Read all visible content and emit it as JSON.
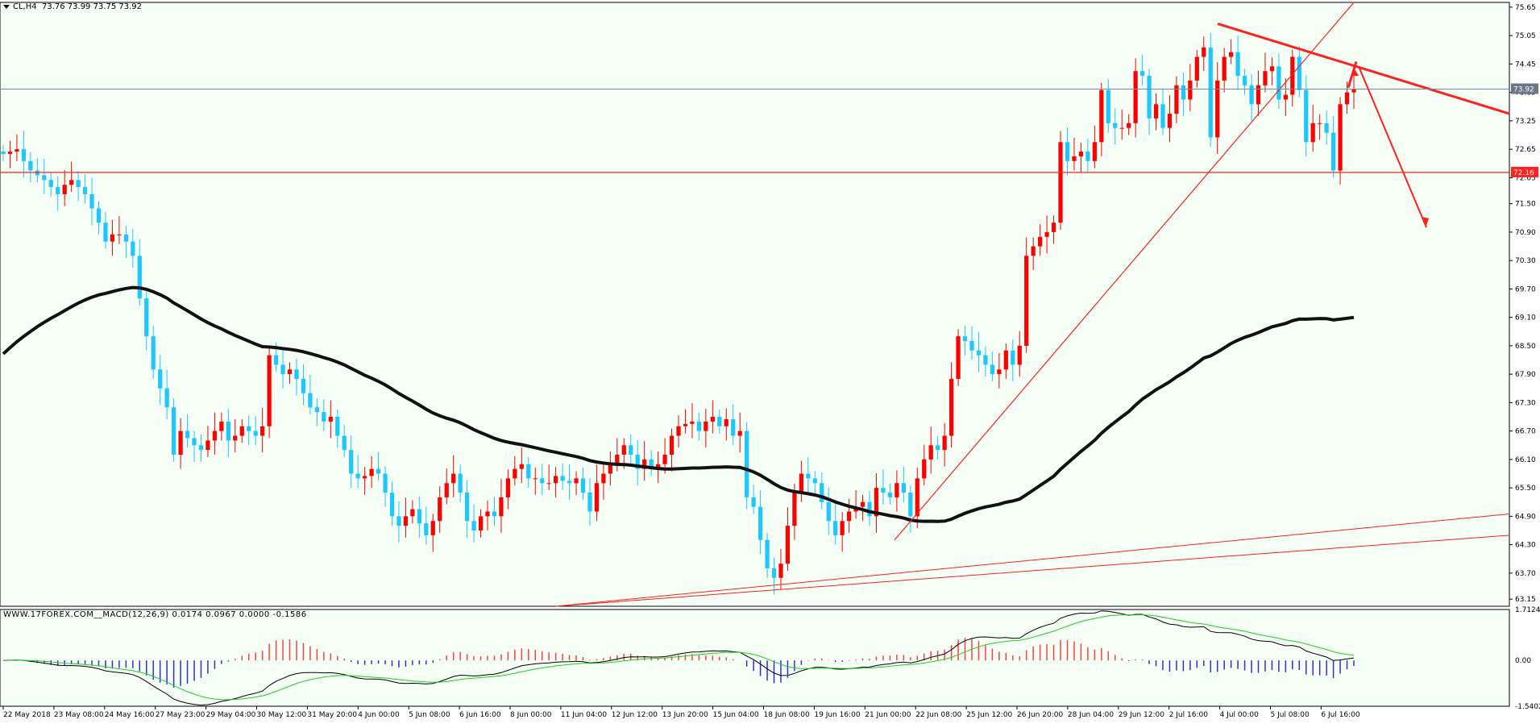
{
  "header": {
    "symbol": "CL,H4",
    "ohlc": "73.76 73.99 73.75 73.92"
  },
  "macd_header": {
    "watermark": "WWW.17FOREX.COM",
    "label": "MACD(12,26,9) 0.0174 0.0967 0.0000 -0.1586"
  },
  "colors": {
    "background": "#f5fff5",
    "bull": "#ff0000",
    "bear": "#1ec8ff",
    "ma": "#111111",
    "trend": "#ff2020",
    "macd_hist_pos": "#ff4040",
    "macd_hist_neg": "#3030d0",
    "macd_signal": "#22cc22",
    "macd_line": "#000000"
  },
  "chart_data": {
    "type": "candlestick",
    "price_axis": {
      "min": 63.0,
      "max": 75.75,
      "ticks": [
        "75.65",
        "75.05",
        "74.45",
        "73.85",
        "73.25",
        "72.65",
        "72.05",
        "71.50",
        "70.90",
        "70.30",
        "69.70",
        "69.10",
        "68.50",
        "67.90",
        "67.30",
        "66.70",
        "66.10",
        "65.50",
        "64.90",
        "64.30",
        "63.70",
        "63.15"
      ]
    },
    "current_price": "73.92",
    "support_level": "72.16",
    "x_labels": [
      "22 May 2018",
      "23 May 08:00",
      "24 May 16:00",
      "27 May 23:00",
      "29 May 04:00",
      "30 May 12:00",
      "31 May 20:00",
      "4 Jun 00:00",
      "5 Jun 08:00",
      "6 Jun 16:00",
      "8 Jun 00:00",
      "11 Jun 04:00",
      "12 Jun 12:00",
      "13 Jun 20:00",
      "15 Jun 04:00",
      "18 Jun 08:00",
      "19 Jun 16:00",
      "21 Jun 00:00",
      "22 Jun 08:00",
      "25 Jun 12:00",
      "26 Jun 20:00",
      "28 Jun 04:00",
      "29 Jun 12:00",
      "2 Jul 16:00",
      "4 Jul 00:00",
      "5 Jul 08:00",
      "6 Jul 16:00"
    ],
    "closes": [
      72.55,
      72.6,
      72.65,
      72.4,
      72.2,
      72.1,
      72.0,
      71.85,
      71.7,
      71.9,
      72.0,
      71.85,
      71.7,
      71.4,
      71.1,
      70.7,
      70.85,
      70.85,
      70.7,
      70.4,
      69.5,
      68.7,
      68.0,
      67.6,
      67.2,
      66.2,
      66.7,
      66.55,
      66.4,
      66.3,
      66.5,
      66.7,
      66.9,
      66.5,
      66.6,
      66.8,
      66.7,
      66.6,
      66.8,
      68.3,
      68.1,
      67.9,
      68.0,
      67.8,
      67.5,
      67.2,
      67.1,
      66.9,
      67.0,
      66.6,
      66.3,
      65.8,
      65.7,
      65.75,
      65.9,
      65.8,
      65.4,
      64.9,
      64.7,
      64.9,
      65.05,
      64.75,
      64.5,
      64.8,
      65.3,
      65.6,
      65.8,
      65.4,
      64.8,
      64.6,
      64.9,
      65.0,
      64.9,
      65.3,
      65.7,
      65.9,
      66.0,
      65.7,
      65.7,
      65.6,
      65.6,
      65.75,
      65.65,
      65.6,
      65.7,
      65.4,
      65.0,
      65.6,
      65.8,
      66.0,
      66.2,
      66.4,
      66.2,
      65.9,
      66.1,
      65.9,
      66.0,
      66.2,
      66.6,
      66.8,
      66.85,
      66.9,
      66.7,
      66.9,
      67.0,
      66.8,
      66.95,
      66.6,
      66.7,
      65.3,
      65.1,
      64.4,
      63.8,
      63.6,
      63.9,
      64.7,
      65.4,
      65.8,
      65.7,
      65.6,
      65.2,
      64.8,
      64.5,
      64.8,
      65.0,
      65.1,
      65.2,
      64.9,
      65.5,
      65.4,
      65.3,
      65.6,
      65.4,
      64.9,
      65.7,
      66.1,
      66.4,
      66.3,
      66.6,
      67.8,
      68.7,
      68.6,
      68.4,
      68.3,
      68.1,
      67.9,
      68.0,
      68.4,
      68.1,
      68.5,
      70.4,
      70.6,
      70.8,
      70.9,
      71.1,
      72.8,
      72.4,
      72.5,
      72.6,
      72.4,
      72.8,
      73.9,
      73.2,
      73.1,
      73.1,
      73.2,
      74.3,
      74.2,
      73.3,
      73.6,
      73.1,
      73.4,
      74.0,
      73.7,
      74.1,
      74.6,
      74.8,
      72.9,
      74.1,
      74.6,
      74.7,
      74.2,
      74.0,
      73.6,
      74.0,
      74.3,
      74.4,
      73.7,
      73.8,
      74.6,
      73.9,
      72.8,
      73.2,
      73.2,
      73.0,
      72.2,
      73.6,
      73.85,
      73.92
    ],
    "ma_last": 69.1,
    "macd_axis": {
      "min": -1.5402,
      "max": 1.7124,
      "ticks": [
        "1.7124",
        "0.00",
        "-1.5402"
      ]
    },
    "drawings": [
      {
        "name": "ascending-trendline"
      },
      {
        "name": "descending-trendline"
      },
      {
        "name": "support-line-72.16"
      },
      {
        "name": "lower-channel-lines"
      },
      {
        "name": "forecast-arrows"
      }
    ]
  }
}
